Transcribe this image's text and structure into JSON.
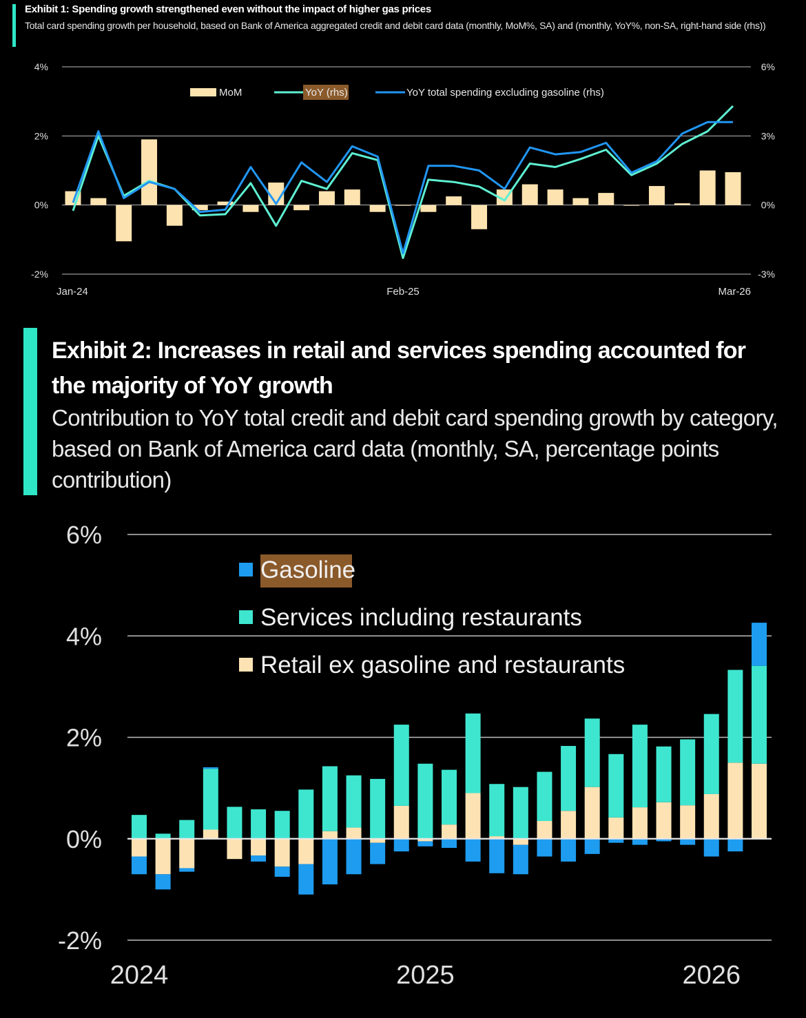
{
  "exhibit1": {
    "title": "Exhibit 1: Spending growth strengthened even without the impact of higher gas prices",
    "subtitle": "Total card spending growth per household, based on Bank of America aggregated credit and debit card data (monthly, MoM%, SA) and (monthly, YoY%, non-SA, right-hand side (rhs))"
  },
  "exhibit2": {
    "title": "Exhibit 2: Increases in retail and services spending accounted for the majority of YoY growth",
    "subtitle": "Contribution to YoY total credit and debit card spending growth by category, based on Bank of America card data (monthly, SA, percentage points contribution)"
  },
  "colors": {
    "mom": "#fde3b0",
    "yoy": "#5ef0d2",
    "yoy_ex_gas": "#2196f3",
    "gasoline": "#1e9cf0",
    "services": "#3ee6cf",
    "retail": "#fde3b4",
    "grid": "#bdbdbd",
    "accent": "#2ee6c6",
    "highlight": "#8b5a2b"
  },
  "chart_data": [
    {
      "type": "bar+line",
      "title": "Exhibit 1: Spending growth strengthened even without the impact of higher gas prices",
      "x_tick_labels": [
        "Jan-24",
        "Feb-25",
        "Mar-26"
      ],
      "x_tick_index": [
        0,
        13,
        26
      ],
      "y_left": {
        "ticks": [
          "4%",
          "2%",
          "0%",
          "-2%"
        ],
        "values": [
          4,
          2,
          0,
          -2
        ],
        "range": [
          -2,
          4
        ]
      },
      "y_right": {
        "ticks": [
          "6%",
          "3%",
          "0%",
          "-3%"
        ],
        "values": [
          6,
          3,
          0,
          -3
        ],
        "range": [
          -3,
          6
        ]
      },
      "legend": [
        "MoM",
        "YoY (rhs)",
        "YoY total spending excluding gasoline (rhs)"
      ],
      "series": [
        {
          "name": "MoM",
          "kind": "bar",
          "axis": "left",
          "values": [
            0.4,
            0.2,
            -1.05,
            1.9,
            -0.6,
            -0.15,
            0.1,
            -0.2,
            0.65,
            -0.15,
            0.4,
            0.45,
            -0.2,
            0.0,
            -0.2,
            0.25,
            -0.7,
            0.45,
            0.6,
            0.45,
            0.2,
            0.35,
            0.0,
            0.55,
            0.05,
            1.0,
            0.95
          ]
        },
        {
          "name": "YoY (rhs)",
          "kind": "line",
          "axis": "right",
          "values": [
            -0.25,
            3.0,
            0.4,
            1.05,
            0.7,
            -0.45,
            -0.4,
            0.95,
            -0.9,
            1.05,
            0.7,
            2.25,
            1.95,
            -2.3,
            1.1,
            1.0,
            0.8,
            0.2,
            1.8,
            1.65,
            2.0,
            2.4,
            1.3,
            1.8,
            2.65,
            3.2,
            4.3
          ]
        },
        {
          "name": "YoY total spending excluding gasoline (rhs)",
          "kind": "line",
          "axis": "right",
          "values": [
            0.1,
            3.2,
            0.3,
            1.0,
            0.7,
            -0.3,
            -0.2,
            1.65,
            0.05,
            1.85,
            1.0,
            2.55,
            2.1,
            -2.1,
            1.7,
            1.7,
            1.5,
            0.7,
            2.5,
            2.2,
            2.3,
            2.7,
            1.4,
            1.9,
            3.1,
            3.6,
            3.6
          ]
        }
      ]
    },
    {
      "type": "bar",
      "stacked": true,
      "title": "Exhibit 2: Increases in retail and services spending accounted for the majority of YoY growth",
      "x_tick_labels": [
        "2024",
        "2025",
        "2026"
      ],
      "x_tick_index": [
        0,
        12,
        24
      ],
      "y_ticks": [
        "6%",
        "4%",
        "2%",
        "0%",
        "-2%"
      ],
      "y_values": [
        6,
        4,
        2,
        0,
        -2
      ],
      "ylim": [
        -2,
        6
      ],
      "legend": [
        "Gasoline",
        "Services including restaurants",
        "Retail ex gasoline and restaurants"
      ],
      "series": [
        {
          "name": "Retail ex gasoline and restaurants",
          "values": [
            -0.35,
            -0.7,
            -0.58,
            0.18,
            -0.4,
            -0.33,
            -0.55,
            -0.5,
            0.15,
            0.22,
            -0.08,
            0.65,
            -0.05,
            0.28,
            0.9,
            0.05,
            -0.12,
            0.35,
            0.55,
            1.02,
            0.42,
            0.62,
            0.72,
            0.66,
            0.88,
            1.5,
            1.48
          ]
        },
        {
          "name": "Services including restaurants",
          "values": [
            0.47,
            0.1,
            0.37,
            1.2,
            0.63,
            0.58,
            0.55,
            0.97,
            1.28,
            1.03,
            1.18,
            1.6,
            1.48,
            1.08,
            1.57,
            1.03,
            1.02,
            0.97,
            1.28,
            1.35,
            1.25,
            1.63,
            1.1,
            1.3,
            1.58,
            1.83,
            1.93
          ]
        },
        {
          "name": "Gasoline",
          "values": [
            -0.35,
            -0.3,
            -0.07,
            0.03,
            0.0,
            -0.12,
            -0.2,
            -0.6,
            -0.9,
            -0.7,
            -0.42,
            -0.25,
            -0.1,
            -0.18,
            -0.45,
            -0.68,
            -0.58,
            -0.35,
            -0.45,
            -0.3,
            -0.08,
            -0.12,
            -0.05,
            -0.12,
            -0.35,
            -0.25,
            0.85
          ]
        }
      ]
    }
  ]
}
